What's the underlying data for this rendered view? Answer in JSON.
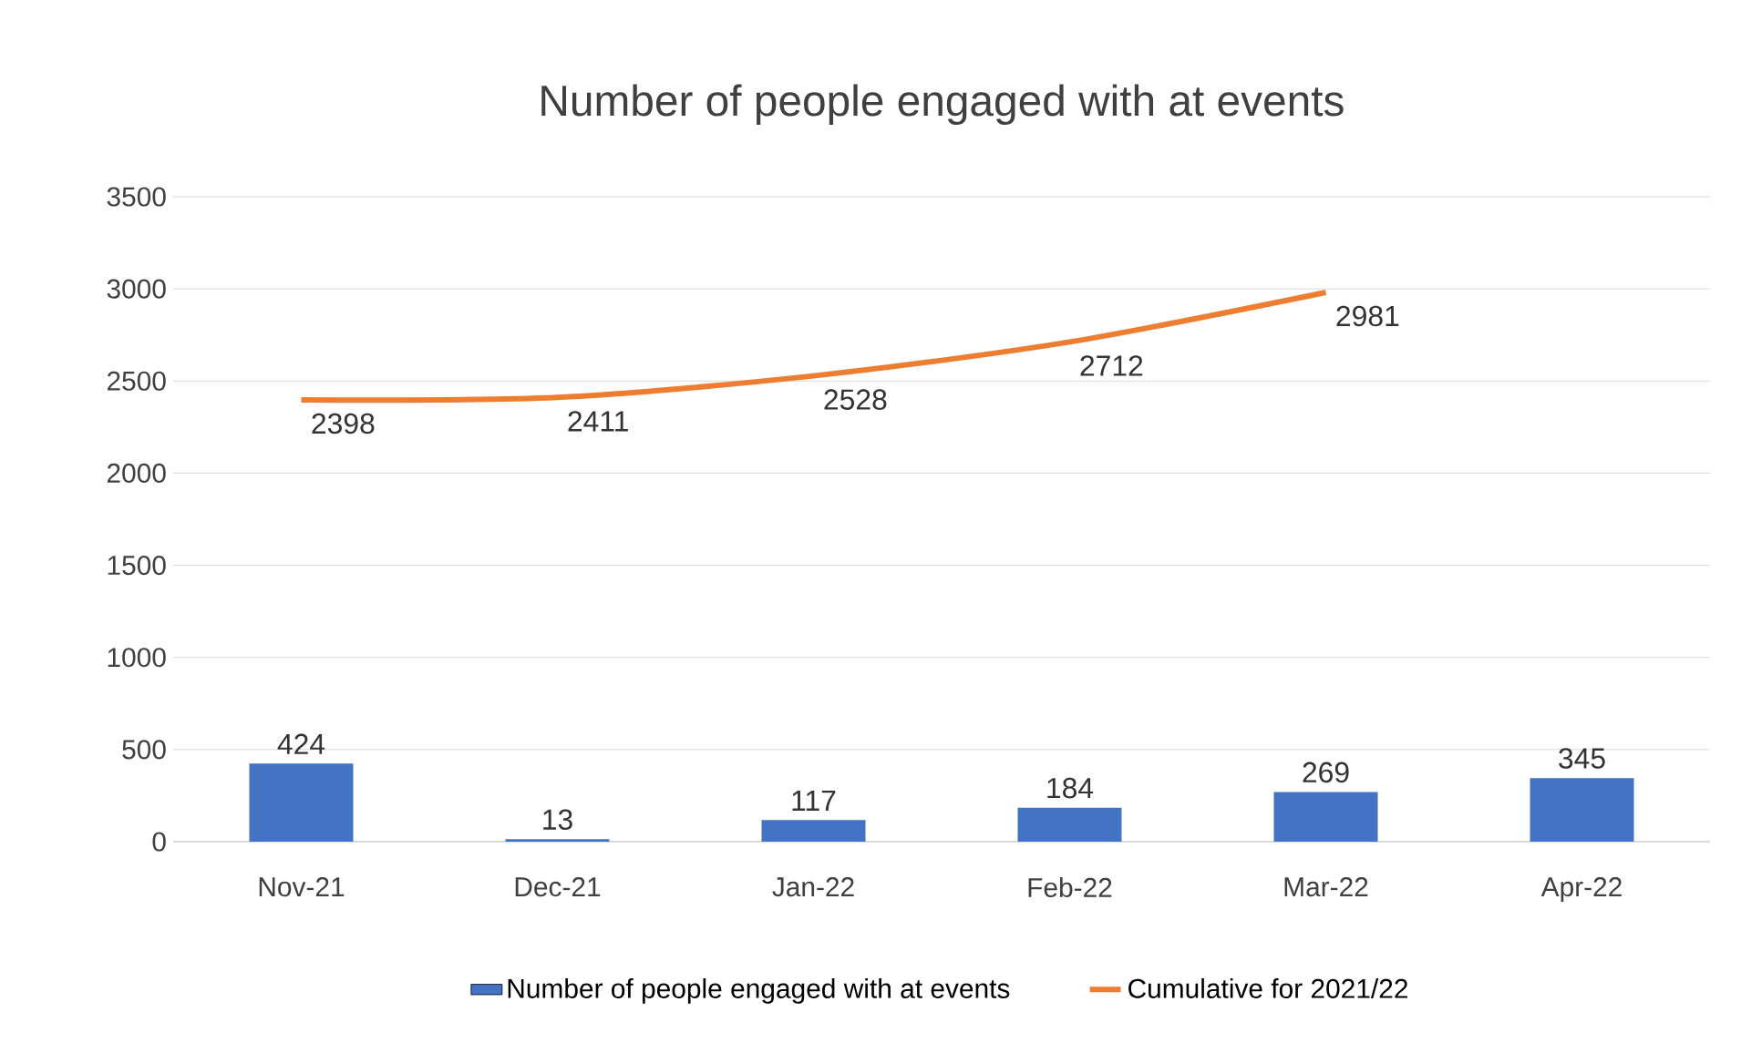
{
  "chart_data": {
    "type": "bar",
    "title": "Number of people engaged with at events",
    "categories": [
      "Nov-21",
      "Dec-21",
      "Jan-22",
      "Feb-22",
      "Mar-22",
      "Apr-22"
    ],
    "series": [
      {
        "name": "Number of people engaged with at events",
        "color": "#4472c4",
        "values": [
          424,
          13,
          117,
          184,
          269,
          345
        ]
      },
      {
        "name": "Cumulative for 2021/22",
        "type": "line",
        "color": "#ed7d31",
        "values": [
          2398,
          2411,
          2528,
          2712,
          2981,
          null
        ]
      }
    ],
    "ylim": [
      0,
      3500
    ],
    "yticks": [
      0,
      500,
      1000,
      1500,
      2000,
      2500,
      3000,
      3500
    ],
    "grid": "y",
    "legend": "bottom",
    "data_labels": true
  }
}
